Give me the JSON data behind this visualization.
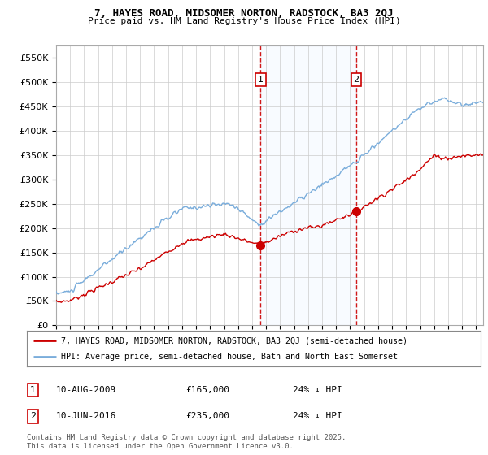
{
  "title1": "7, HAYES ROAD, MIDSOMER NORTON, RADSTOCK, BA3 2QJ",
  "title2": "Price paid vs. HM Land Registry's House Price Index (HPI)",
  "ylim": [
    0,
    575000
  ],
  "yticks": [
    0,
    50000,
    100000,
    150000,
    200000,
    250000,
    300000,
    350000,
    400000,
    450000,
    500000,
    550000
  ],
  "xlim_start": 1995.0,
  "xlim_end": 2025.5,
  "sale1_x": 2009.61,
  "sale1_y": 165000,
  "sale2_x": 2016.44,
  "sale2_y": 235000,
  "sale1_label": "1",
  "sale2_label": "2",
  "sale1_date": "10-AUG-2009",
  "sale1_price": "£165,000",
  "sale1_hpi": "24% ↓ HPI",
  "sale2_date": "10-JUN-2016",
  "sale2_price": "£235,000",
  "sale2_hpi": "24% ↓ HPI",
  "line_color_property": "#cc0000",
  "line_color_hpi": "#7aaddb",
  "shade_color": "#ddeeff",
  "dashed_color": "#cc0000",
  "legend_label_property": "7, HAYES ROAD, MIDSOMER NORTON, RADSTOCK, BA3 2QJ (semi-detached house)",
  "legend_label_hpi": "HPI: Average price, semi-detached house, Bath and North East Somerset",
  "footnote": "Contains HM Land Registry data © Crown copyright and database right 2025.\nThis data is licensed under the Open Government Licence v3.0.",
  "bg_color": "#ffffff",
  "grid_color": "#cccccc"
}
